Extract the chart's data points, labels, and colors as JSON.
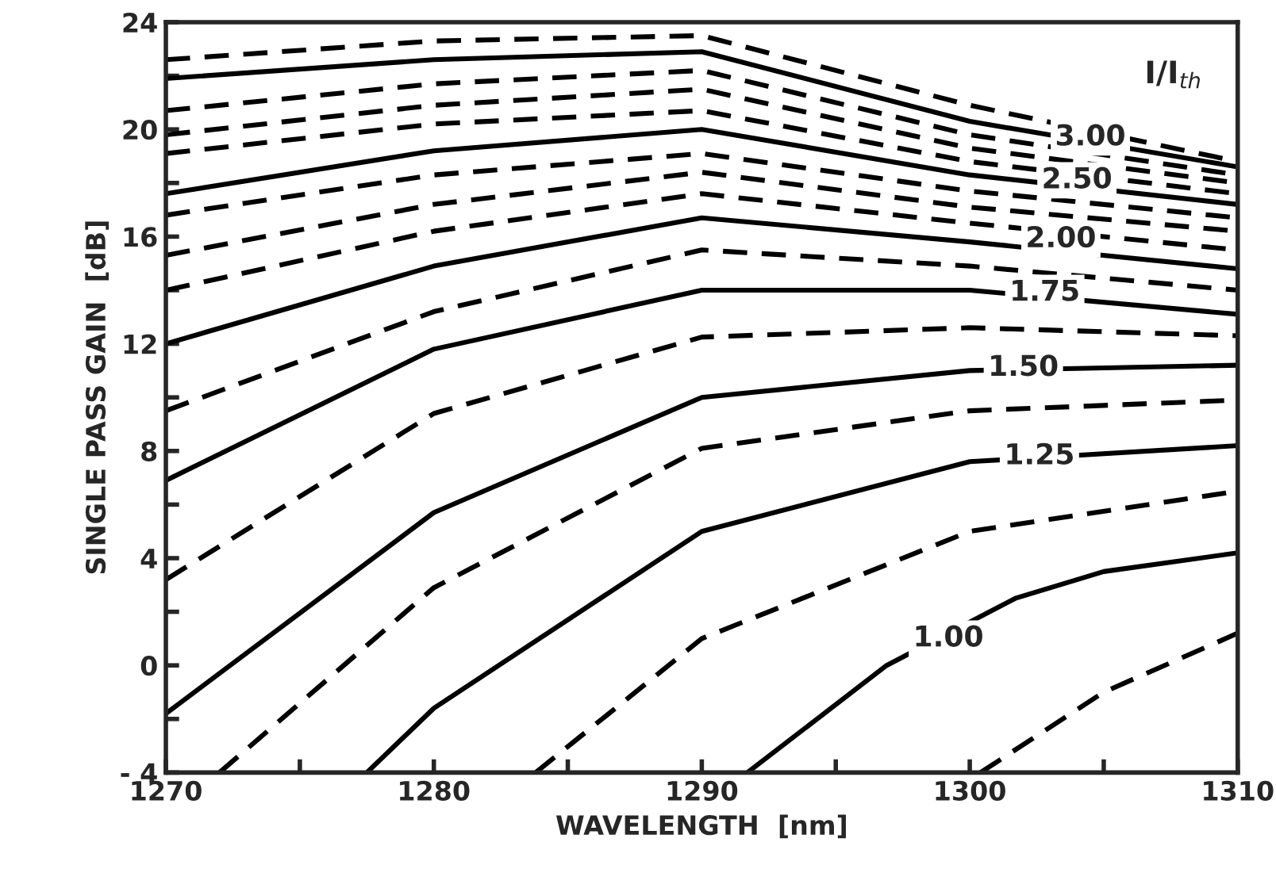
{
  "chart_data": {
    "type": "line",
    "xlabel": "WAVELENGTH  [nm]",
    "ylabel": "SINGLE PASS GAIN  [dB]",
    "xlim": [
      1270,
      1310
    ],
    "ylim": [
      -4,
      24
    ],
    "xticks": [
      1270,
      {
        "value": 1275,
        "label": null
      },
      1280,
      {
        "value": 1285,
        "label": null
      },
      1290,
      {
        "value": 1295,
        "label": null
      },
      1300,
      {
        "value": 1305,
        "label": null
      },
      1310
    ],
    "yticks": [
      {
        "value": -4,
        "label": "- 4"
      },
      {
        "value": -2,
        "label": null
      },
      0,
      {
        "value": 2,
        "label": null
      },
      4,
      {
        "value": 6,
        "label": null
      },
      8,
      {
        "value": 10,
        "label": null
      },
      12,
      {
        "value": 14,
        "label": null
      },
      16,
      {
        "value": 18,
        "label": null
      },
      20,
      {
        "value": 22,
        "label": null
      },
      24
    ],
    "series": [
      {
        "color": "#000000",
        "line_style": "dashed",
        "x": [
          1300.4,
          1305,
          1310
        ],
        "values": [
          -4,
          -1.0,
          1.2
        ]
      },
      {
        "color": "#000000",
        "line_style": "solid",
        "x": [
          1291.7,
          1296.9,
          1301.7,
          1305,
          1310
        ],
        "values": [
          -4,
          0,
          2.5,
          3.5,
          4.2
        ]
      },
      {
        "color": "#000000",
        "line_style": "dashed",
        "x": [
          1283.8,
          1290,
          1300,
          1310
        ],
        "values": [
          -4,
          1.0,
          5.0,
          6.5
        ]
      },
      {
        "color": "#000000",
        "line_style": "solid",
        "x": [
          1277.5,
          1280,
          1290,
          1300,
          1310
        ],
        "values": [
          -4,
          -1.6,
          5.0,
          7.6,
          8.2
        ]
      },
      {
        "color": "#000000",
        "line_style": "dashed",
        "x": [
          1272,
          1280,
          1290,
          1300,
          1310
        ],
        "values": [
          -4,
          2.9,
          8.1,
          9.5,
          9.9
        ]
      },
      {
        "color": "#000000",
        "line_style": "solid",
        "x": [
          1270,
          1280,
          1290,
          1300,
          1310
        ],
        "values": [
          -1.8,
          5.7,
          10.0,
          11.0,
          11.2
        ]
      },
      {
        "color": "#000000",
        "line_style": "dashed",
        "x": [
          1270,
          1280,
          1290,
          1300,
          1310
        ],
        "values": [
          3.2,
          9.4,
          12.25,
          12.6,
          12.3
        ]
      },
      {
        "color": "#000000",
        "line_style": "solid",
        "x": [
          1270,
          1280,
          1290,
          1300,
          1310
        ],
        "values": [
          6.9,
          11.8,
          14.0,
          14.0,
          13.1
        ]
      },
      {
        "color": "#000000",
        "line_style": "dashed",
        "x": [
          1270,
          1280,
          1290,
          1300,
          1310
        ],
        "values": [
          9.5,
          13.2,
          15.5,
          14.9,
          14.0
        ]
      },
      {
        "color": "#000000",
        "line_style": "solid",
        "x": [
          1270,
          1280,
          1290,
          1300,
          1310
        ],
        "values": [
          12.0,
          14.9,
          16.7,
          15.8,
          14.8
        ]
      },
      {
        "color": "#000000",
        "line_style": "dashed",
        "x": [
          1270,
          1280,
          1290,
          1300,
          1310
        ],
        "values": [
          14.0,
          16.2,
          17.6,
          16.5,
          15.5
        ]
      },
      {
        "color": "#000000",
        "line_style": "dashed",
        "x": [
          1270,
          1280,
          1290,
          1300,
          1310
        ],
        "values": [
          15.3,
          17.2,
          18.4,
          17.1,
          16.2
        ]
      },
      {
        "color": "#000000",
        "line_style": "dashed",
        "x": [
          1270,
          1280,
          1290,
          1300,
          1310
        ],
        "values": [
          16.8,
          18.3,
          19.1,
          17.7,
          16.7
        ]
      },
      {
        "color": "#000000",
        "line_style": "solid",
        "x": [
          1270,
          1280,
          1290,
          1300,
          1310
        ],
        "values": [
          17.6,
          19.2,
          20.0,
          18.3,
          17.2
        ]
      },
      {
        "color": "#000000",
        "line_style": "dashed",
        "x": [
          1270,
          1280,
          1290,
          1300,
          1310
        ],
        "values": [
          19.1,
          20.2,
          20.7,
          18.8,
          17.6
        ]
      },
      {
        "color": "#000000",
        "line_style": "dashed",
        "x": [
          1270,
          1280,
          1290,
          1300,
          1310
        ],
        "values": [
          19.8,
          20.9,
          21.5,
          19.3,
          18.0
        ]
      },
      {
        "color": "#000000",
        "line_style": "dashed",
        "x": [
          1270,
          1280,
          1290,
          1300,
          1310
        ],
        "values": [
          20.7,
          21.7,
          22.2,
          19.8,
          18.3
        ]
      },
      {
        "color": "#000000",
        "line_style": "solid",
        "x": [
          1270,
          1280,
          1290,
          1300,
          1310
        ],
        "values": [
          21.9,
          22.6,
          22.9,
          20.3,
          18.6
        ]
      },
      {
        "color": "#000000",
        "line_style": "dashed",
        "x": [
          1270,
          1280,
          1290,
          1300,
          1310
        ],
        "values": [
          22.6,
          23.3,
          23.5,
          20.9,
          18.8
        ]
      }
    ],
    "annotations": [
      {
        "text": "3.00",
        "x": 1304.5,
        "y": 19.7
      },
      {
        "text": "2.50",
        "x": 1304.0,
        "y": 18.1
      },
      {
        "text": "2.00",
        "x": 1303.4,
        "y": 15.9
      },
      {
        "text": "1.75",
        "x": 1302.8,
        "y": 13.9
      },
      {
        "text": "1.50",
        "x": 1302.0,
        "y": 11.1
      },
      {
        "text": "1.25",
        "x": 1302.6,
        "y": 7.8
      },
      {
        "text": "1.00",
        "x": 1299.2,
        "y": 1.0
      },
      "I/I$_{th}$"
    ],
    "grid": false,
    "legend": false
  }
}
